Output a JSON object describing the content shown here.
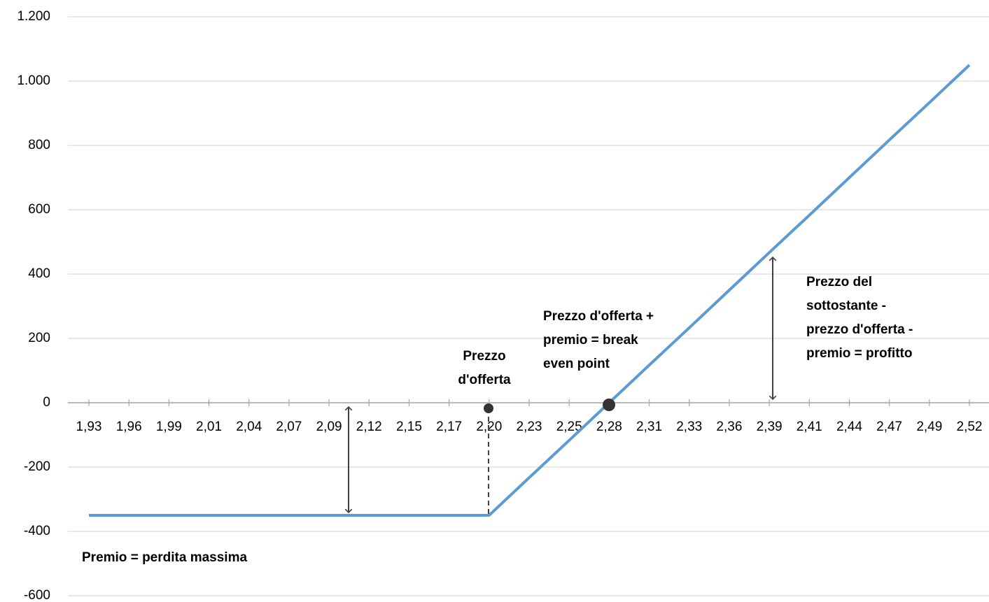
{
  "chart_data": {
    "type": "line",
    "categories": [
      "1,93",
      "1,96",
      "1,99",
      "2,01",
      "2,04",
      "2,07",
      "2,09",
      "2,12",
      "2,15",
      "2,17",
      "2,20",
      "2,23",
      "2,25",
      "2,28",
      "2,31",
      "2,33",
      "2,36",
      "2,39",
      "2,41",
      "2,44",
      "2,47",
      "2,49",
      "2,52"
    ],
    "series": [
      {
        "color": "#5b9bd5",
        "values": [
          -350,
          -350,
          -350,
          -350,
          -350,
          -350,
          -350,
          -350,
          -350,
          -350,
          -350,
          -233,
          -117,
          0,
          117,
          233,
          350,
          467,
          583,
          700,
          817,
          933,
          1050
        ]
      }
    ],
    "ylim": [
      -600,
      1200
    ],
    "yticks": [
      -600,
      -400,
      -200,
      0,
      200,
      400,
      600,
      800,
      {
        "value": 1000,
        "label": "1.000"
      },
      {
        "value": 1200,
        "label": "1.200"
      }
    ],
    "grid": true,
    "annotations": [
      {
        "lines": [
          "Prezzo",
          "d'offerta"
        ]
      },
      {
        "lines": [
          "Prezzo d'offerta +",
          "premio = break",
          "even point"
        ]
      },
      {
        "lines": [
          "Prezzo del",
          "sottostante -",
          "prezzo d'offerta -",
          "premio = profitto"
        ]
      },
      {
        "lines": [
          "Premio = perdita massima"
        ]
      }
    ]
  }
}
